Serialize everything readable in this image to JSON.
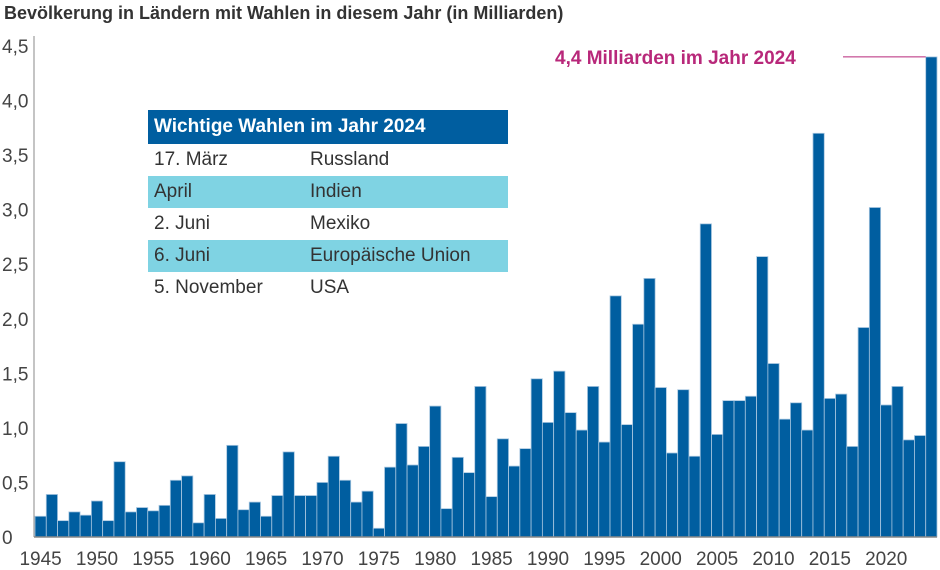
{
  "title": "Bevölkerung in Ländern mit Wahlen in diesem Jahr (in Milliarden)",
  "annotation": "4,4 Milliarden im Jahr 2024",
  "colors": {
    "bar": "#005ea0",
    "annotation": "#b8287a",
    "table_header": "#005ea0",
    "table_alt": "#7fd3e3"
  },
  "table": {
    "header": "Wichtige Wahlen im Jahr 2024",
    "rows": [
      {
        "date": "17. März",
        "country": "Russland"
      },
      {
        "date": "April",
        "country": "Indien"
      },
      {
        "date": "2. Juni",
        "country": "Mexiko"
      },
      {
        "date": "6. Juni",
        "country": "Europäische Union"
      },
      {
        "date": "5. November",
        "country": "USA"
      }
    ]
  },
  "chart_data": {
    "type": "bar",
    "title": "Bevölkerung in Ländern mit Wahlen in diesem Jahr (in Milliarden)",
    "xlabel": "",
    "ylabel": "",
    "ylim": [
      0,
      4.5
    ],
    "yticks": [
      "0",
      "0,5",
      "1,0",
      "1,5",
      "2,0",
      "2,5",
      "3,0",
      "3,5",
      "4,0",
      "4,5"
    ],
    "xticks": [
      "1945",
      "1950",
      "1955",
      "1960",
      "1965",
      "1970",
      "1975",
      "1980",
      "1985",
      "1990",
      "1995",
      "2000",
      "2005",
      "2010",
      "2015",
      "2020"
    ],
    "x_start": 1945,
    "values": [
      0.19,
      0.39,
      0.15,
      0.23,
      0.2,
      0.33,
      0.15,
      0.69,
      0.23,
      0.27,
      0.24,
      0.29,
      0.52,
      0.56,
      0.13,
      0.39,
      0.17,
      0.84,
      0.25,
      0.32,
      0.19,
      0.38,
      0.78,
      0.38,
      0.38,
      0.5,
      0.74,
      0.52,
      0.32,
      0.42,
      0.08,
      0.64,
      1.04,
      0.66,
      0.83,
      1.2,
      0.26,
      0.73,
      0.59,
      1.38,
      0.37,
      0.9,
      0.65,
      0.81,
      1.45,
      1.05,
      1.52,
      1.14,
      0.98,
      1.38,
      0.87,
      2.21,
      1.03,
      1.95,
      2.37,
      1.37,
      0.77,
      1.35,
      0.74,
      2.87,
      0.94,
      1.25,
      1.25,
      1.29,
      2.57,
      1.59,
      1.08,
      1.23,
      0.98,
      3.7,
      1.27,
      1.31,
      0.83,
      1.92,
      3.02,
      1.21,
      1.38,
      0.89,
      0.93,
      4.4
    ],
    "grid": false,
    "legend": "none"
  }
}
